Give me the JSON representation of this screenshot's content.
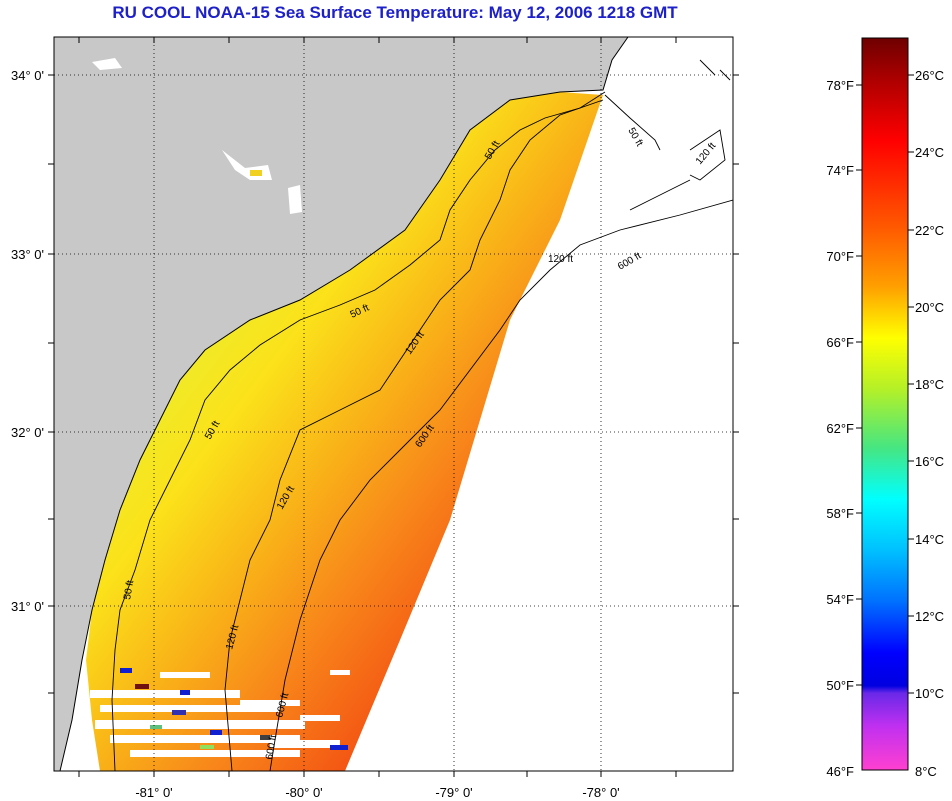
{
  "title": "RU COOL  NOAA-15  Sea Surface Temperature:  May 12, 2006 1218 GMT",
  "map": {
    "lon_labels": [
      "-81° 0'",
      "-80° 0'",
      "-79° 0'",
      "-78° 0'"
    ],
    "lat_labels": [
      "34° 0'",
      "33° 0'",
      "32° 0'",
      "31° 0'"
    ],
    "contour_labels": [
      "50 ft",
      "50 ft",
      "50 ft",
      "50 ft",
      "50 ft",
      "120 ft",
      "120 ft",
      "120 ft",
      "120 ft",
      "120 ft",
      "600 ft",
      "600 ft",
      "600 ft",
      "600 ft"
    ],
    "colors": {
      "land": "#c8c8c8",
      "ocean": "#ffffff",
      "nodata": "#ffffff"
    }
  },
  "colorbar": {
    "f_labels": [
      "78°F",
      "74°F",
      "70°F",
      "66°F",
      "62°F",
      "58°F",
      "54°F",
      "50°F",
      "46°F"
    ],
    "c_labels": [
      "26°C",
      "24°C",
      "22°C",
      "20°C",
      "18°C",
      "16°C",
      "14°C",
      "12°C",
      "10°C",
      "8°C"
    ]
  }
}
